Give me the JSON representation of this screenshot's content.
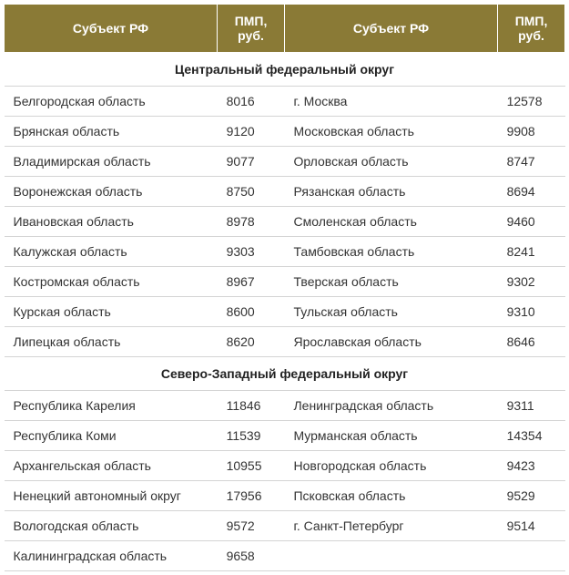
{
  "headers": {
    "region": "Субъект РФ",
    "value": "ПМП, руб."
  },
  "colors": {
    "header_bg": "#8a7a36",
    "header_text": "#ffffff",
    "border": "#d4d4d4",
    "text": "#333333"
  },
  "sections": [
    {
      "title": "Центральный федеральный округ",
      "rows": [
        {
          "left_region": "Белгородская область",
          "left_value": "8016",
          "right_region": "г. Москва",
          "right_value": "12578"
        },
        {
          "left_region": "Брянская область",
          "left_value": "9120",
          "right_region": "Московская область",
          "right_value": "9908"
        },
        {
          "left_region": "Владимирская область",
          "left_value": "9077",
          "right_region": "Орловская область",
          "right_value": "8747"
        },
        {
          "left_region": "Воронежская область",
          "left_value": "8750",
          "right_region": "Рязанская область",
          "right_value": "8694"
        },
        {
          "left_region": "Ивановская область",
          "left_value": "8978",
          "right_region": "Смоленская область",
          "right_value": "9460"
        },
        {
          "left_region": "Калужская область",
          "left_value": "9303",
          "right_region": "Тамбовская область",
          "right_value": "8241"
        },
        {
          "left_region": "Костромская область",
          "left_value": "8967",
          "right_region": "Тверская область",
          "right_value": "9302"
        },
        {
          "left_region": "Курская область",
          "left_value": "8600",
          "right_region": "Тульская область",
          "right_value": "9310"
        },
        {
          "left_region": "Липецкая область",
          "left_value": "8620",
          "right_region": "Ярославская область",
          "right_value": "8646"
        }
      ]
    },
    {
      "title": "Северо-Западный федеральный округ",
      "rows": [
        {
          "left_region": "Республика Карелия",
          "left_value": "11846",
          "right_region": "Ленинградская область",
          "right_value": "9311"
        },
        {
          "left_region": "Республика Коми",
          "left_value": "11539",
          "right_region": "Мурманская область",
          "right_value": "14354"
        },
        {
          "left_region": "Архангельская область",
          "left_value": "10955",
          "right_region": "Новгородская область",
          "right_value": "9423"
        },
        {
          "left_region": "Ненецкий автономный округ",
          "left_value": "17956",
          "right_region": "Псковская область",
          "right_value": "9529"
        },
        {
          "left_region": "Вологодская область",
          "left_value": "9572",
          "right_region": "г. Санкт-Петербург",
          "right_value": "9514"
        },
        {
          "left_region": "Калининградская область",
          "left_value": "9658",
          "right_region": "",
          "right_value": ""
        }
      ]
    }
  ]
}
